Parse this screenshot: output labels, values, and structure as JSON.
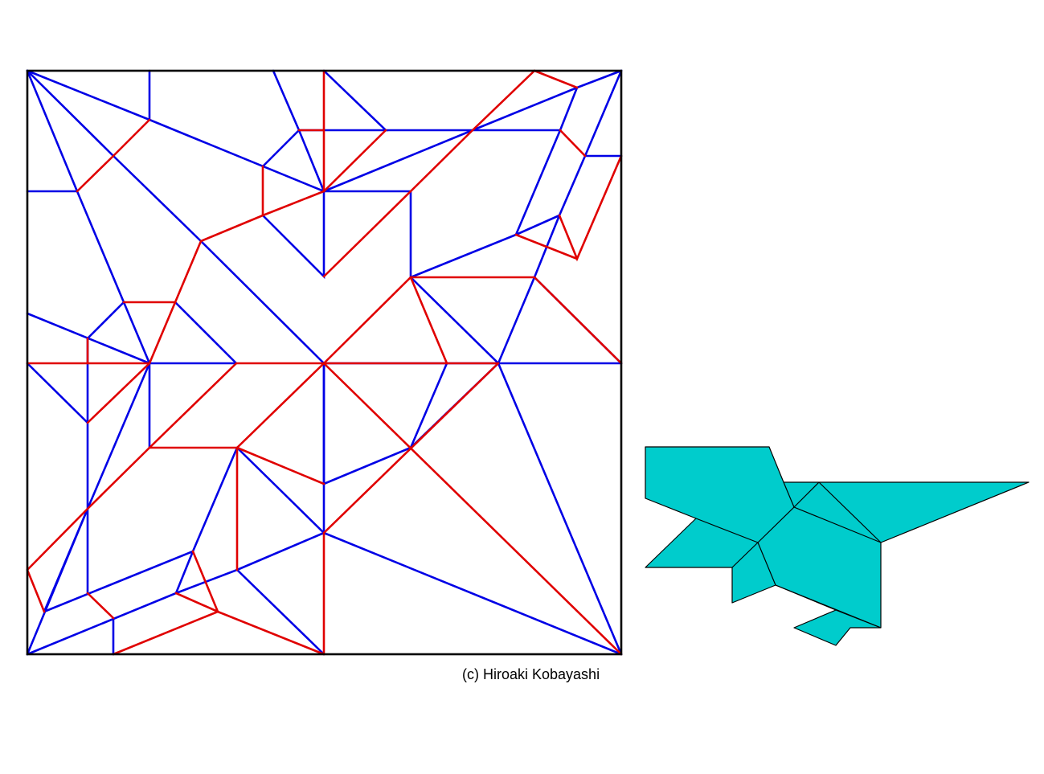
{
  "credit": {
    "text": "(c)  Hiroaki Kobayashi"
  },
  "colors": {
    "mountain_fold": "#e00000",
    "valley_fold": "#0000e6",
    "border": "#000000",
    "folded_model_fill": "#00cccc",
    "folded_model_stroke": "#000000",
    "background": "#ffffff"
  },
  "legend_meaning": {
    "red": "mountain fold",
    "blue": "valley fold"
  }
}
